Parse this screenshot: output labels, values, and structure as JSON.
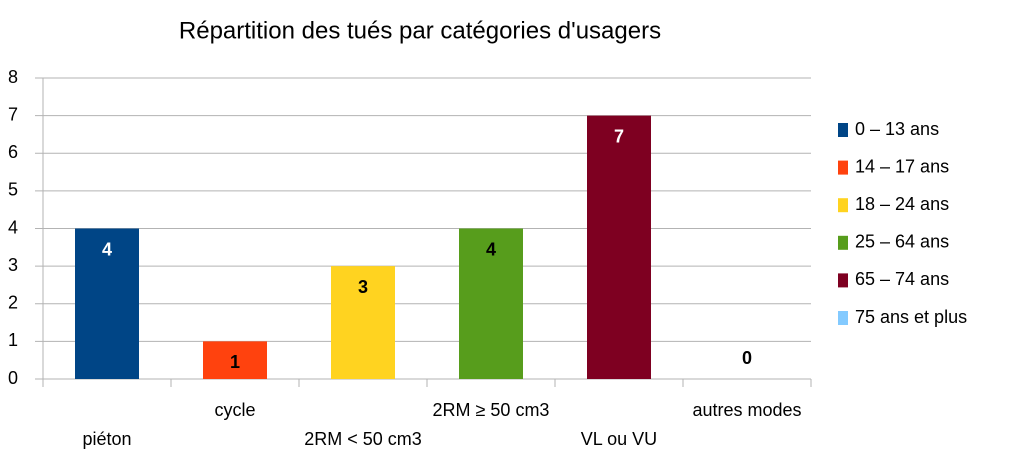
{
  "chart_data": {
    "type": "bar",
    "title": "Répartition des tués par catégories d'usagers",
    "categories": [
      "piéton",
      "cycle",
      "2RM < 50 cm3",
      "2RM ≥ 50 cm3",
      "VL ou VU",
      "autres modes"
    ],
    "values": [
      4,
      1,
      3,
      4,
      7,
      0
    ],
    "colors": [
      "#004586",
      "#ff420e",
      "#ffd320",
      "#579d1c",
      "#7e0021",
      "#83caff"
    ],
    "legend": [
      "0 – 13 ans",
      "14 – 17 ans",
      "18 – 24 ans",
      "25 – 64 ans",
      "65 – 74 ans",
      "75 ans et plus"
    ],
    "ylim": [
      0,
      8
    ],
    "yticks": [
      0,
      1,
      2,
      3,
      4,
      5,
      6,
      7,
      8
    ],
    "grid": true
  }
}
